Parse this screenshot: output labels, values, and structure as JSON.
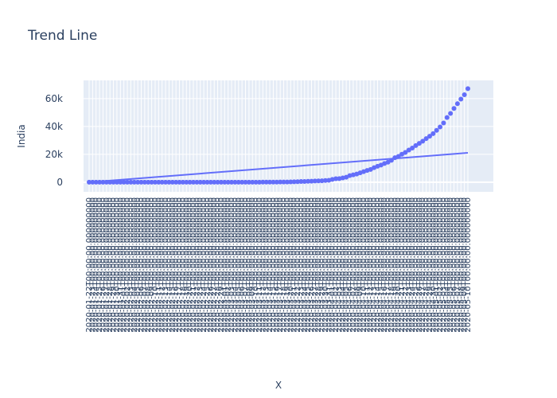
{
  "chart_data": {
    "type": "scatter",
    "title": "Trend Line",
    "x_label": "X",
    "y_label": "India",
    "x": [
      "2020-01-22T00:00:00.000000000",
      "2020-01-23T00:00:00.000000000",
      "2020-01-24T00:00:00.000000000",
      "2020-01-25T00:00:00.000000000",
      "2020-01-26T00:00:00.000000000",
      "2020-01-27T00:00:00.000000000",
      "2020-01-28T00:00:00.000000000",
      "2020-01-29T00:00:00.000000000",
      "2020-01-30T00:00:00.000000000",
      "2020-01-31T00:00:00.000000000",
      "2020-02-01T00:00:00.000000000",
      "2020-02-02T00:00:00.000000000",
      "2020-02-03T00:00:00.000000000",
      "2020-02-04T00:00:00.000000000",
      "2020-02-05T00:00:00.000000000",
      "2020-02-06T00:00:00.000000000",
      "2020-02-07T00:00:00.000000000",
      "2020-02-08T00:00:00.000000000",
      "2020-02-09T00:00:00.000000000",
      "2020-02-10T00:00:00.000000000",
      "2020-02-11T00:00:00.000000000",
      "2020-02-12T00:00:00.000000000",
      "2020-02-13T00:00:00.000000000",
      "2020-02-14T00:00:00.000000000",
      "2020-02-15T00:00:00.000000000",
      "2020-02-16T00:00:00.000000000",
      "2020-02-17T00:00:00.000000000",
      "2020-02-18T00:00:00.000000000",
      "2020-02-19T00:00:00.000000000",
      "2020-02-20T00:00:00.000000000",
      "2020-02-21T00:00:00.000000000",
      "2020-02-22T00:00:00.000000000",
      "2020-02-23T00:00:00.000000000",
      "2020-02-24T00:00:00.000000000",
      "2020-02-25T00:00:00.000000000",
      "2020-02-26T00:00:00.000000000",
      "2020-02-27T00:00:00.000000000",
      "2020-02-28T00:00:00.000000000",
      "2020-02-29T00:00:00.000000000",
      "2020-03-01T00:00:00.000000000",
      "2020-03-02T00:00:00.000000000",
      "2020-03-03T00:00:00.000000000",
      "2020-03-04T00:00:00.000000000",
      "2020-03-05T00:00:00.000000000",
      "2020-03-06T00:00:00.000000000",
      "2020-03-07T00:00:00.000000000",
      "2020-03-08T00:00:00.000000000",
      "2020-03-09T00:00:00.000000000",
      "2020-03-10T00:00:00.000000000",
      "2020-03-11T00:00:00.000000000",
      "2020-03-12T00:00:00.000000000",
      "2020-03-13T00:00:00.000000000",
      "2020-03-14T00:00:00.000000000",
      "2020-03-15T00:00:00.000000000",
      "2020-03-16T00:00:00.000000000",
      "2020-03-17T00:00:00.000000000",
      "2020-03-18T00:00:00.000000000",
      "2020-03-19T00:00:00.000000000",
      "2020-03-20T00:00:00.000000000",
      "2020-03-21T00:00:00.000000000",
      "2020-03-22T00:00:00.000000000",
      "2020-03-23T00:00:00.000000000",
      "2020-03-24T00:00:00.000000000",
      "2020-03-25T00:00:00.000000000",
      "2020-03-26T00:00:00.000000000",
      "2020-03-27T00:00:00.000000000",
      "2020-03-28T00:00:00.000000000",
      "2020-03-29T00:00:00.000000000",
      "2020-03-30T00:00:00.000000000",
      "2020-03-31T00:00:00.000000000",
      "2020-04-01T00:00:00.000000000",
      "2020-04-02T00:00:00.000000000",
      "2020-04-03T00:00:00.000000000",
      "2020-04-04T00:00:00.000000000",
      "2020-04-05T00:00:00.000000000",
      "2020-04-06T00:00:00.000000000",
      "2020-04-07T00:00:00.000000000",
      "2020-04-08T00:00:00.000000000",
      "2020-04-09T00:00:00.000000000",
      "2020-04-10T00:00:00.000000000",
      "2020-04-11T00:00:00.000000000",
      "2020-04-12T00:00:00.000000000",
      "2020-04-13T00:00:00.000000000",
      "2020-04-14T00:00:00.000000000",
      "2020-04-15T00:00:00.000000000",
      "2020-04-16T00:00:00.000000000",
      "2020-04-17T00:00:00.000000000",
      "2020-04-18T00:00:00.000000000",
      "2020-04-19T00:00:00.000000000",
      "2020-04-20T00:00:00.000000000",
      "2020-04-21T00:00:00.000000000",
      "2020-04-22T00:00:00.000000000",
      "2020-04-23T00:00:00.000000000",
      "2020-04-24T00:00:00.000000000",
      "2020-04-25T00:00:00.000000000",
      "2020-04-26T00:00:00.000000000",
      "2020-04-27T00:00:00.000000000",
      "2020-04-28T00:00:00.000000000",
      "2020-04-29T00:00:00.000000000",
      "2020-04-30T00:00:00.000000000",
      "2020-05-01T00:00:00.000000000",
      "2020-05-02T00:00:00.000000000",
      "2020-05-03T00:00:00.000000000",
      "2020-05-04T00:00:00.000000000",
      "2020-05-05T00:00:00.000000000",
      "2020-05-06T00:00:00.000000000",
      "2020-05-07T00:00:00.000000000",
      "2020-05-08T00:00:00.000000000",
      "2020-05-09T00:00:00.000000000",
      "2020-05-10T00:00:00.000000000"
    ],
    "series": [
      {
        "color": "#636efa",
        "values": [
          0,
          0,
          0,
          0,
          0,
          0,
          0,
          0,
          1,
          1,
          1,
          2,
          3,
          3,
          3,
          3,
          3,
          3,
          3,
          3,
          3,
          3,
          3,
          3,
          3,
          3,
          3,
          3,
          3,
          3,
          3,
          3,
          3,
          3,
          3,
          3,
          3,
          3,
          3,
          3,
          5,
          5,
          28,
          30,
          31,
          34,
          39,
          43,
          56,
          62,
          73,
          82,
          102,
          113,
          119,
          142,
          156,
          194,
          244,
          330,
          396,
          499,
          536,
          657,
          727,
          887,
          987,
          1024,
          1251,
          1397,
          1998,
          2543,
          2567,
          3082,
          3588,
          4778,
          5311,
          5916,
          6725,
          7598,
          8446,
          9205,
          10453,
          11487,
          12322,
          13430,
          14352,
          15722,
          17615,
          18539,
          20080,
          21370,
          23077,
          24530,
          26283,
          27890,
          29451,
          31324,
          33062,
          34863,
          37257,
          39699,
          42505,
          46437,
          49400,
          52987,
          56351,
          59695,
          62808,
          67161
        ]
      },
      {
        "type": "line",
        "color": "#636efa",
        "x": [
          "2020-01-22T00:00:00.000000000",
          "2020-05-10T00:00:00.000000000"
        ],
        "values": [
          0,
          21100
        ]
      }
    ],
    "ylim": [
      -6900,
      73100
    ],
    "yticks": [
      0,
      {
        "value": 20000,
        "label": "20k"
      },
      {
        "value": 40000,
        "label": "40k"
      },
      {
        "value": 60000,
        "label": "60k"
      }
    ],
    "grid": true
  }
}
